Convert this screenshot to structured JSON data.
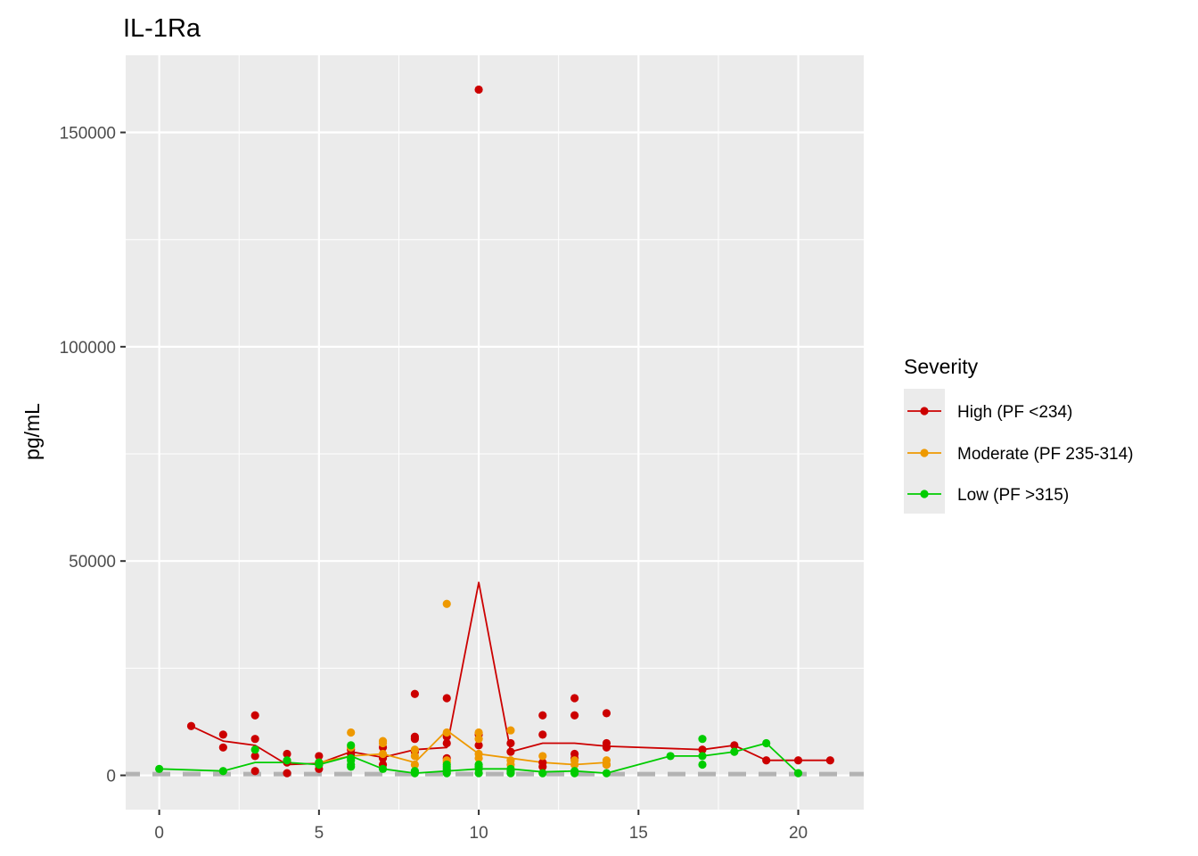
{
  "chart_data": {
    "type": "scatter",
    "title": "IL-1Ra",
    "xlabel": "",
    "ylabel": "pg/mL",
    "xlim": [
      -1.05,
      22.05
    ],
    "ylim": [
      -8000,
      168000
    ],
    "x_ticks": [
      0,
      5,
      10,
      15,
      20
    ],
    "x_tick_labels": [
      "0",
      "5",
      "10",
      "15",
      "20"
    ],
    "y_ticks": [
      0,
      50000,
      100000,
      150000
    ],
    "y_tick_labels": [
      "0",
      "50000",
      "100000",
      "150000"
    ],
    "grid": true,
    "reference_line": {
      "y": 300,
      "style": "dashed",
      "color": "#b3b3b3"
    },
    "legend": {
      "title": "Severity",
      "position": "right",
      "entries": [
        "High (PF <234)",
        "Moderate (PF 235-314)",
        "Low (PF >315)"
      ]
    },
    "series": [
      {
        "name": "High (PF <234)",
        "color": "#cc0000",
        "points": [
          [
            1,
            11500
          ],
          [
            2,
            9500
          ],
          [
            2,
            6500
          ],
          [
            3,
            14000
          ],
          [
            3,
            8500
          ],
          [
            3,
            4500
          ],
          [
            3,
            1000
          ],
          [
            4,
            5000
          ],
          [
            4,
            3000
          ],
          [
            4,
            500
          ],
          [
            5,
            4500
          ],
          [
            5,
            2500
          ],
          [
            5,
            1500
          ],
          [
            6,
            6000
          ],
          [
            6,
            5000
          ],
          [
            7,
            6500
          ],
          [
            7,
            4000
          ],
          [
            7,
            2500
          ],
          [
            8,
            19000
          ],
          [
            8,
            9000
          ],
          [
            8,
            8500
          ],
          [
            8,
            5500
          ],
          [
            9,
            18000
          ],
          [
            9,
            9000
          ],
          [
            9,
            7500
          ],
          [
            9,
            4000
          ],
          [
            10,
            160000
          ],
          [
            10,
            9500
          ],
          [
            10,
            7000
          ],
          [
            11,
            7500
          ],
          [
            11,
            5500
          ],
          [
            12,
            14000
          ],
          [
            12,
            9500
          ],
          [
            12,
            3000
          ],
          [
            12,
            2000
          ],
          [
            13,
            18000
          ],
          [
            13,
            14000
          ],
          [
            13,
            5000
          ],
          [
            13,
            4000
          ],
          [
            14,
            14500
          ],
          [
            14,
            7500
          ],
          [
            14,
            6500
          ],
          [
            14,
            2500
          ],
          [
            17,
            6000
          ],
          [
            18,
            7000
          ],
          [
            19,
            3500
          ],
          [
            20,
            3500
          ],
          [
            21,
            3500
          ]
        ],
        "line": [
          [
            1,
            11500
          ],
          [
            2,
            8000
          ],
          [
            3,
            7000
          ],
          [
            4,
            2500
          ],
          [
            5,
            2800
          ],
          [
            6,
            5500
          ],
          [
            7,
            4200
          ],
          [
            8,
            6000
          ],
          [
            9,
            6500
          ],
          [
            10,
            45000
          ],
          [
            11,
            5500
          ],
          [
            12,
            7500
          ],
          [
            13,
            7500
          ],
          [
            14,
            6800
          ],
          [
            17,
            6000
          ],
          [
            18,
            7000
          ],
          [
            19,
            3500
          ],
          [
            20,
            3500
          ],
          [
            21,
            3500
          ]
        ]
      },
      {
        "name": "Moderate (PF 235-314)",
        "color": "#ee9900",
        "points": [
          [
            5,
            3000
          ],
          [
            6,
            10000
          ],
          [
            6,
            6500
          ],
          [
            7,
            8000
          ],
          [
            7,
            7500
          ],
          [
            7,
            5000
          ],
          [
            8,
            6000
          ],
          [
            8,
            4500
          ],
          [
            8,
            2500
          ],
          [
            9,
            40000
          ],
          [
            9,
            10000
          ],
          [
            9,
            3500
          ],
          [
            9,
            3000
          ],
          [
            10,
            10000
          ],
          [
            10,
            8500
          ],
          [
            10,
            5000
          ],
          [
            10,
            4000
          ],
          [
            11,
            10500
          ],
          [
            11,
            3500
          ],
          [
            11,
            2500
          ],
          [
            12,
            4500
          ],
          [
            13,
            3500
          ],
          [
            13,
            2500
          ],
          [
            14,
            3500
          ],
          [
            14,
            2500
          ]
        ],
        "line": [
          [
            5,
            3000
          ],
          [
            6,
            4500
          ],
          [
            7,
            5000
          ],
          [
            8,
            3000
          ],
          [
            9,
            10500
          ],
          [
            10,
            5000
          ],
          [
            11,
            4000
          ],
          [
            12,
            3000
          ],
          [
            13,
            2500
          ],
          [
            14,
            3000
          ]
        ]
      },
      {
        "name": "Low (PF >315)",
        "color": "#00cc00",
        "points": [
          [
            0,
            1500
          ],
          [
            2,
            1000
          ],
          [
            3,
            6000
          ],
          [
            4,
            3500
          ],
          [
            5,
            3000
          ],
          [
            5,
            2500
          ],
          [
            6,
            7000
          ],
          [
            6,
            4000
          ],
          [
            6,
            3500
          ],
          [
            6,
            2500
          ],
          [
            6,
            2000
          ],
          [
            7,
            1500
          ],
          [
            8,
            1000
          ],
          [
            8,
            500
          ],
          [
            9,
            2500
          ],
          [
            9,
            2000
          ],
          [
            9,
            1500
          ],
          [
            9,
            1000
          ],
          [
            9,
            500
          ],
          [
            10,
            2500
          ],
          [
            10,
            2000
          ],
          [
            10,
            1500
          ],
          [
            10,
            500
          ],
          [
            11,
            1500
          ],
          [
            11,
            1000
          ],
          [
            11,
            500
          ],
          [
            12,
            500
          ],
          [
            13,
            1000
          ],
          [
            13,
            500
          ],
          [
            14,
            500
          ],
          [
            16,
            4500
          ],
          [
            17,
            8500
          ],
          [
            17,
            4500
          ],
          [
            17,
            2500
          ],
          [
            18,
            5500
          ],
          [
            19,
            7500
          ],
          [
            20,
            500
          ]
        ],
        "line": [
          [
            0,
            1500
          ],
          [
            2,
            1000
          ],
          [
            3,
            3000
          ],
          [
            4,
            3000
          ],
          [
            5,
            2500
          ],
          [
            6,
            4500
          ],
          [
            7,
            1500
          ],
          [
            8,
            500
          ],
          [
            9,
            1000
          ],
          [
            10,
            1500
          ],
          [
            11,
            1500
          ],
          [
            12,
            800
          ],
          [
            13,
            1000
          ],
          [
            14,
            500
          ],
          [
            16,
            4500
          ],
          [
            17,
            4500
          ],
          [
            18,
            5500
          ],
          [
            19,
            7500
          ],
          [
            20,
            500
          ]
        ]
      }
    ]
  }
}
